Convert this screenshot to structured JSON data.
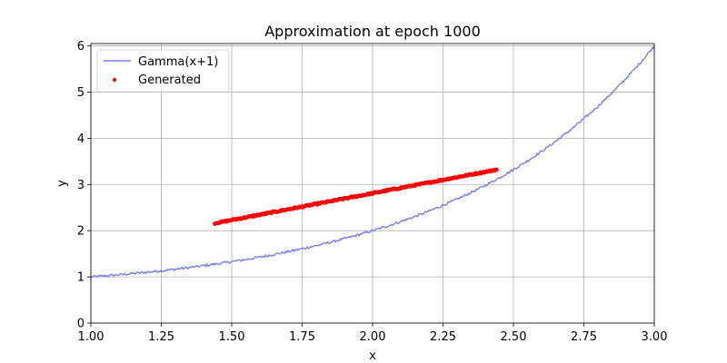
{
  "chart_data": {
    "type": "scatter",
    "title": "Approximation at epoch 1000",
    "xlabel": "x",
    "ylabel": "y",
    "xlim": [
      1.0,
      3.0
    ],
    "ylim": [
      0,
      6.05
    ],
    "xticks": [
      "1.00",
      "1.25",
      "1.50",
      "1.75",
      "2.00",
      "2.25",
      "2.50",
      "2.75",
      "3.00"
    ],
    "yticks": [
      "0",
      "1",
      "2",
      "3",
      "4",
      "5",
      "6"
    ],
    "grid": true,
    "legend_position": "top-left",
    "series": [
      {
        "name": "Gamma(x+1)",
        "type": "line",
        "color": "#7b7bf0",
        "function": "gamma(x+1)",
        "x_range": [
          1.0,
          3.0
        ],
        "noisy": true
      },
      {
        "name": "Generated",
        "type": "scatter",
        "color": "#ff0000",
        "x_range": [
          1.44,
          2.44
        ],
        "y_range": [
          2.16,
          3.32
        ]
      }
    ]
  }
}
